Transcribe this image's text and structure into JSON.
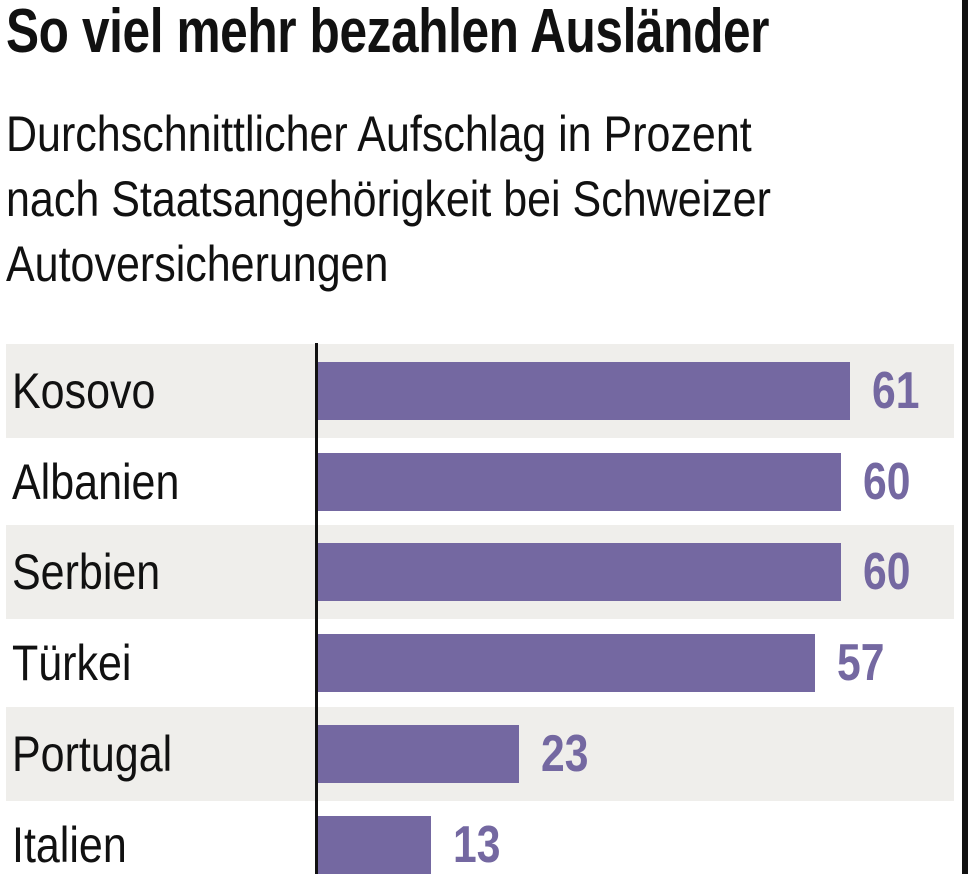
{
  "chart_data": {
    "type": "bar",
    "orientation": "horizontal",
    "title": "So viel mehr bezahlen Ausländer",
    "subtitle_lines": [
      "Durchschnittlicher Aufschlag in Prozent",
      "nach Staatsangehörigkeit bei Schweizer",
      "Autoversicherungen"
    ],
    "categories": [
      "Kosovo",
      "Albanien",
      "Serbien",
      "Türkei",
      "Portugal",
      "Italien"
    ],
    "values": [
      61,
      60,
      60,
      57,
      23,
      13
    ],
    "xlabel": "",
    "ylabel": "",
    "xlim": [
      0,
      70
    ],
    "grid": false,
    "colors": {
      "bar": "#7468a1",
      "stripe": "#efeeeb",
      "text": "#111111"
    }
  }
}
